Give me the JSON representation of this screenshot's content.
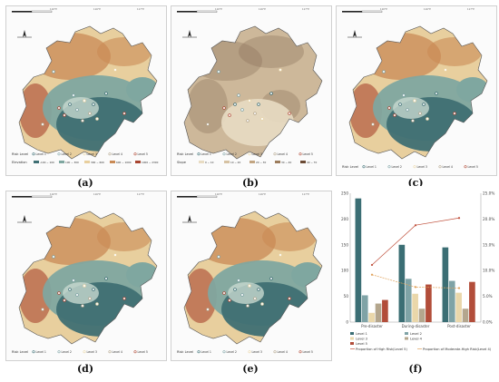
{
  "panels": {
    "a": {
      "caption": "(a)",
      "risk_title": "Risk Level",
      "risk_levels": [
        "Level 1",
        "Level 2",
        "Level 3",
        "Level 4",
        "Level 5"
      ],
      "var_title": "Elevation",
      "var_classes": [
        "-100 ~ 100",
        "100 ~ 300",
        "300 ~ 600",
        "600 ~ 1000",
        "1000 ~ 2300"
      ]
    },
    "b": {
      "caption": "(b)",
      "risk_title": "Risk Level",
      "risk_levels": [
        "Level 1",
        "Level 2",
        "Level 3",
        "Level 4",
        "Level 5"
      ],
      "var_title": "Slope",
      "var_classes": [
        "0 ~ 10",
        "10 ~ 20",
        "20 ~ 30",
        "30 ~ 40",
        "40 ~ 70"
      ]
    },
    "c": {
      "caption": "(c)",
      "risk_title": "Risk Level",
      "risk_levels": [
        "Level 1",
        "Level 2",
        "Level 3",
        "Level 4",
        "Level 5"
      ]
    },
    "d": {
      "caption": "(d)",
      "risk_title": "Risk Level",
      "risk_levels": [
        "Level 1",
        "Level 2",
        "Level 3",
        "Level 4",
        "Level 5"
      ]
    },
    "e": {
      "caption": "(e)",
      "risk_title": "Risk Level",
      "risk_levels": [
        "Level 1",
        "Level 2",
        "Level 3",
        "Level 4",
        "Level 5"
      ]
    },
    "f": {
      "caption": "(f)"
    }
  },
  "map_ticks": {
    "lat": [
      "40°N",
      "40°N",
      "40°N",
      "40°N"
    ],
    "lon": [
      "116°E",
      "116°E",
      "117°E"
    ]
  },
  "colors": {
    "low": "#3f6f73",
    "mid": "#7fa7a0",
    "plain": "#c7d8cf",
    "hill": "#e8cf9e",
    "high": "#c98a55",
    "peak": "#a8452f",
    "slope_base": "#cdb89a",
    "slope_dark": "#8a6f58",
    "level1": "#3b6e74",
    "level2": "#7fa3a6",
    "level3": "#ead7aa",
    "level4": "#b4a68d",
    "level5": "#b24d3a",
    "line_high": "#c0503c",
    "line_mod": "#e0a25a"
  },
  "chart_data": {
    "type": "bar",
    "categories": [
      "Pre-disaster",
      "During-disaster",
      "Post-disaster"
    ],
    "series": [
      {
        "name": "Level 1",
        "values": [
          240,
          150,
          145
        ]
      },
      {
        "name": "Level 2",
        "values": [
          52,
          84,
          80
        ]
      },
      {
        "name": "Level 3",
        "values": [
          18,
          55,
          57
        ]
      },
      {
        "name": "Level 4",
        "values": [
          36,
          26,
          26
        ]
      },
      {
        "name": "Level 5",
        "values": [
          43,
          73,
          78
        ]
      }
    ],
    "lines": [
      {
        "name": "Proportion of High Risk(Level 5)",
        "values": [
          11.1,
          18.8,
          20.2
        ]
      },
      {
        "name": "Proportion of Moderate-High Risk(Level 4)",
        "values": [
          9.2,
          6.8,
          6.6
        ]
      }
    ],
    "ylim": [
      0,
      250
    ],
    "y_ticks": [
      0,
      50,
      100,
      150,
      200,
      250
    ],
    "y2lim": [
      0,
      25
    ],
    "y2_ticks": [
      "0.0%",
      "5.0%",
      "10.0%",
      "15.0%",
      "20.0%",
      "25.0%"
    ],
    "legend": [
      "Level 1",
      "Level 2",
      "Level 3",
      "Level 4",
      "Level 5",
      "Proportion of High Risk(Level 5)",
      "Proportion of Moderate-High Risk(Level 4)"
    ]
  }
}
